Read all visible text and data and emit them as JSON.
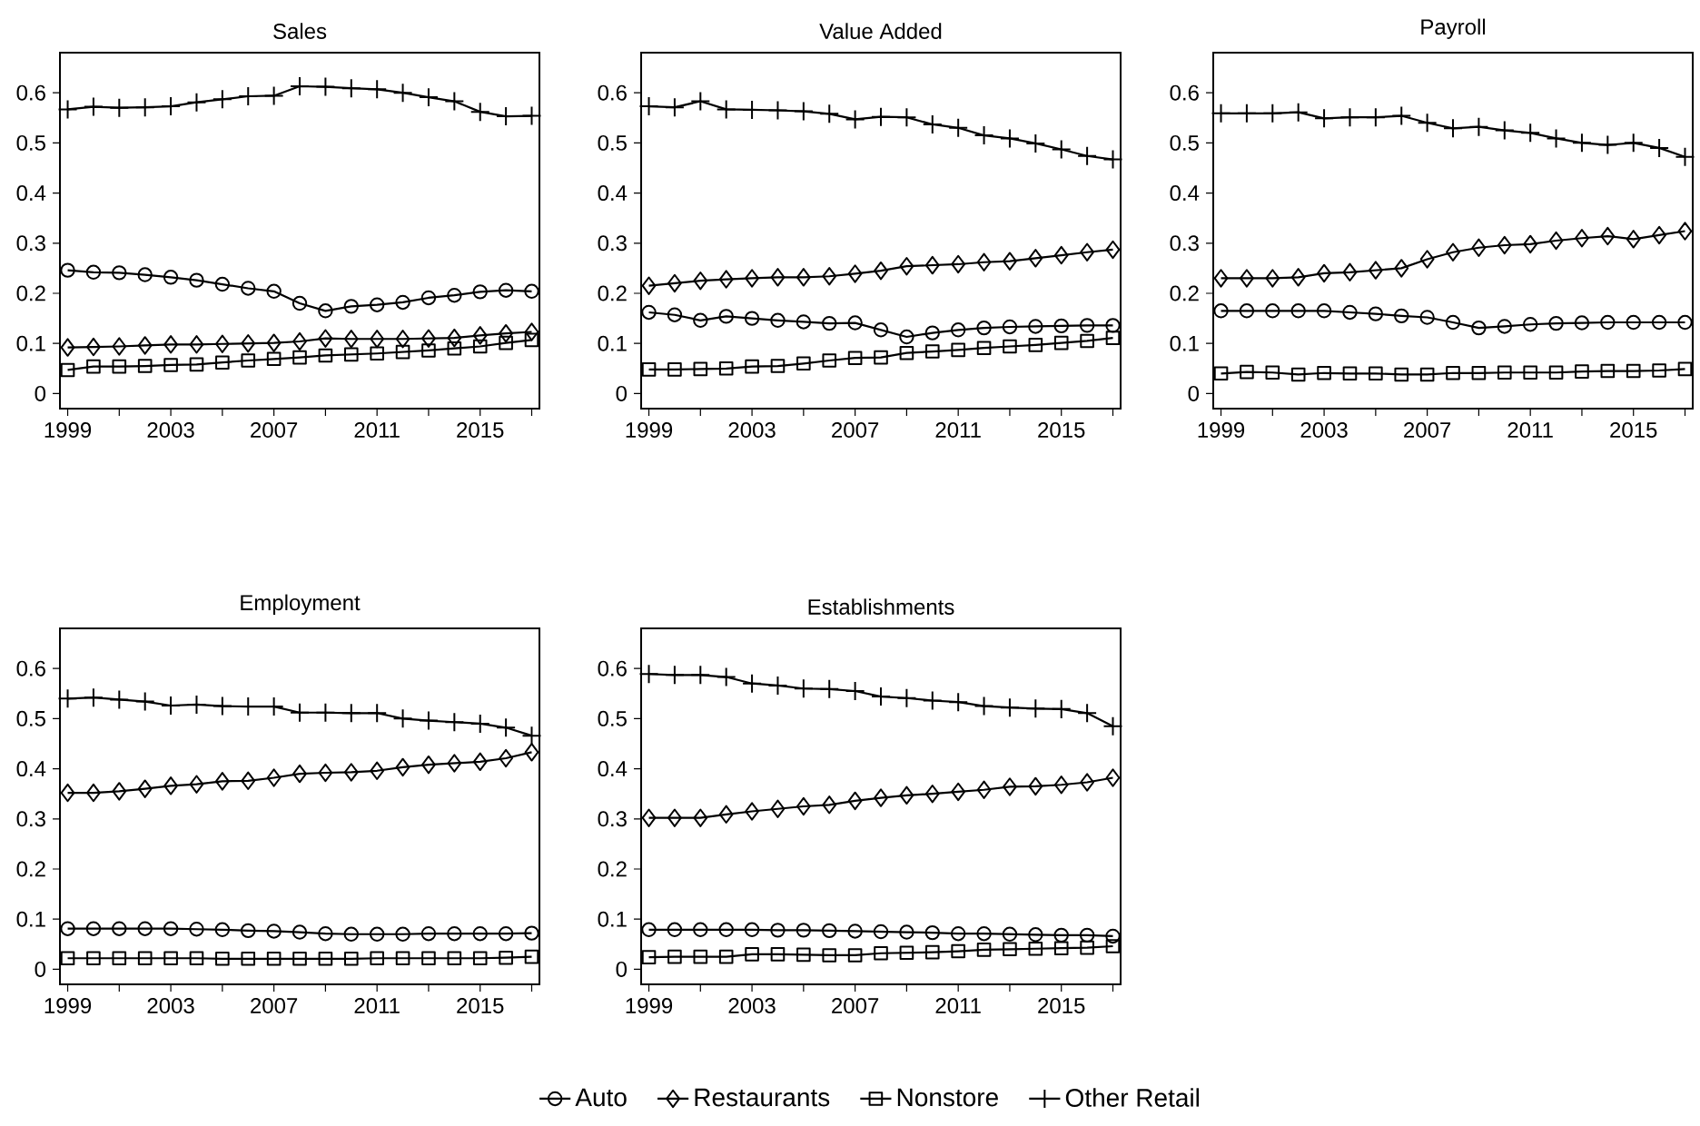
{
  "chart_data": [
    {
      "type": "line",
      "title": "Sales",
      "x": [
        1999,
        2000,
        2001,
        2002,
        2003,
        2004,
        2005,
        2006,
        2007,
        2008,
        2009,
        2010,
        2011,
        2012,
        2013,
        2014,
        2015,
        2016,
        2017
      ],
      "xlim": [
        1998.7,
        2017.3
      ],
      "ylim": [
        -0.03,
        0.68
      ],
      "xticks": [
        1999,
        {
          "value": 2001,
          "label": null
        },
        2003,
        {
          "value": 2005,
          "label": null
        },
        2007,
        {
          "value": 2009,
          "label": null
        },
        2011,
        {
          "value": 2013,
          "label": null
        },
        2015,
        {
          "value": 2017,
          "label": null
        }
      ],
      "yticks": [
        0,
        0.1,
        0.2,
        0.3,
        0.4,
        0.5,
        0.6
      ],
      "series": [
        {
          "color": "#000000",
          "marker": "circle",
          "values": [
            0.246,
            0.242,
            0.241,
            0.237,
            0.232,
            0.226,
            0.218,
            0.21,
            0.204,
            0.18,
            0.165,
            0.174,
            0.177,
            0.182,
            0.191,
            0.196,
            0.203,
            0.206,
            0.204
          ]
        },
        {
          "color": "#000000",
          "marker": "diamond",
          "values": [
            0.092,
            0.093,
            0.094,
            0.096,
            0.098,
            0.098,
            0.099,
            0.1,
            0.101,
            0.104,
            0.11,
            0.109,
            0.109,
            0.109,
            0.11,
            0.111,
            0.116,
            0.12,
            0.123
          ]
        },
        {
          "color": "#000000",
          "marker": "square",
          "values": [
            0.047,
            0.054,
            0.054,
            0.055,
            0.057,
            0.058,
            0.062,
            0.066,
            0.069,
            0.072,
            0.076,
            0.078,
            0.08,
            0.083,
            0.086,
            0.09,
            0.094,
            0.101,
            0.107
          ]
        },
        {
          "color": "#000000",
          "marker": "cross",
          "values": [
            0.567,
            0.572,
            0.57,
            0.571,
            0.573,
            0.581,
            0.587,
            0.593,
            0.594,
            0.613,
            0.612,
            0.609,
            0.607,
            0.6,
            0.591,
            0.583,
            0.562,
            0.553,
            0.554
          ]
        }
      ]
    },
    {
      "type": "line",
      "title": "Value Added",
      "x": [
        1999,
        2000,
        2001,
        2002,
        2003,
        2004,
        2005,
        2006,
        2007,
        2008,
        2009,
        2010,
        2011,
        2012,
        2013,
        2014,
        2015,
        2016,
        2017
      ],
      "xlim": [
        1998.7,
        2017.3
      ],
      "ylim": [
        -0.03,
        0.68
      ],
      "xticks": [
        1999,
        {
          "value": 2001,
          "label": null
        },
        2003,
        {
          "value": 2005,
          "label": null
        },
        2007,
        {
          "value": 2009,
          "label": null
        },
        2011,
        {
          "value": 2013,
          "label": null
        },
        2015,
        {
          "value": 2017,
          "label": null
        }
      ],
      "yticks": [
        0,
        0.1,
        0.2,
        0.3,
        0.4,
        0.5,
        0.6
      ],
      "series": [
        {
          "color": "#000000",
          "marker": "circle",
          "values": [
            0.162,
            0.157,
            0.146,
            0.154,
            0.15,
            0.146,
            0.143,
            0.14,
            0.141,
            0.127,
            0.113,
            0.121,
            0.127,
            0.131,
            0.133,
            0.134,
            0.135,
            0.136,
            0.136
          ]
        },
        {
          "color": "#000000",
          "marker": "diamond",
          "values": [
            0.215,
            0.22,
            0.225,
            0.228,
            0.23,
            0.232,
            0.232,
            0.234,
            0.239,
            0.245,
            0.254,
            0.256,
            0.258,
            0.262,
            0.264,
            0.27,
            0.276,
            0.282,
            0.287
          ]
        },
        {
          "color": "#000000",
          "marker": "square",
          "values": [
            0.048,
            0.048,
            0.049,
            0.05,
            0.054,
            0.055,
            0.06,
            0.066,
            0.071,
            0.072,
            0.081,
            0.084,
            0.087,
            0.091,
            0.094,
            0.097,
            0.101,
            0.105,
            0.111
          ]
        },
        {
          "color": "#000000",
          "marker": "cross",
          "values": [
            0.573,
            0.571,
            0.583,
            0.567,
            0.566,
            0.565,
            0.563,
            0.558,
            0.547,
            0.552,
            0.551,
            0.537,
            0.53,
            0.515,
            0.509,
            0.499,
            0.487,
            0.474,
            0.467
          ]
        }
      ]
    },
    {
      "type": "line",
      "title": "Payroll",
      "x": [
        1999,
        2000,
        2001,
        2002,
        2003,
        2004,
        2005,
        2006,
        2007,
        2008,
        2009,
        2010,
        2011,
        2012,
        2013,
        2014,
        2015,
        2016,
        2017
      ],
      "xlim": [
        1998.7,
        2017.3
      ],
      "ylim": [
        -0.03,
        0.68
      ],
      "xticks": [
        1999,
        {
          "value": 2001,
          "label": null
        },
        2003,
        {
          "value": 2005,
          "label": null
        },
        2007,
        {
          "value": 2009,
          "label": null
        },
        2011,
        {
          "value": 2013,
          "label": null
        },
        2015,
        {
          "value": 2017,
          "label": null
        }
      ],
      "yticks": [
        0,
        0.1,
        0.2,
        0.3,
        0.4,
        0.5,
        0.6
      ],
      "series": [
        {
          "color": "#000000",
          "marker": "circle",
          "values": [
            0.165,
            0.165,
            0.165,
            0.165,
            0.165,
            0.162,
            0.159,
            0.155,
            0.152,
            0.142,
            0.131,
            0.134,
            0.138,
            0.14,
            0.141,
            0.142,
            0.142,
            0.142,
            0.142
          ]
        },
        {
          "color": "#000000",
          "marker": "diamond",
          "values": [
            0.23,
            0.23,
            0.23,
            0.232,
            0.24,
            0.242,
            0.246,
            0.25,
            0.268,
            0.282,
            0.291,
            0.296,
            0.298,
            0.305,
            0.31,
            0.314,
            0.308,
            0.316,
            0.324
          ]
        },
        {
          "color": "#000000",
          "marker": "square",
          "values": [
            0.04,
            0.043,
            0.042,
            0.038,
            0.041,
            0.04,
            0.04,
            0.038,
            0.038,
            0.041,
            0.041,
            0.042,
            0.042,
            0.042,
            0.044,
            0.045,
            0.045,
            0.046,
            0.049
          ]
        },
        {
          "color": "#000000",
          "marker": "cross",
          "values": [
            0.559,
            0.559,
            0.559,
            0.561,
            0.549,
            0.551,
            0.551,
            0.554,
            0.54,
            0.529,
            0.532,
            0.525,
            0.52,
            0.509,
            0.5,
            0.496,
            0.5,
            0.49,
            0.472
          ]
        }
      ]
    },
    {
      "type": "line",
      "title": "Employment",
      "x": [
        1999,
        2000,
        2001,
        2002,
        2003,
        2004,
        2005,
        2006,
        2007,
        2008,
        2009,
        2010,
        2011,
        2012,
        2013,
        2014,
        2015,
        2016,
        2017
      ],
      "xlim": [
        1998.7,
        2017.3
      ],
      "ylim": [
        -0.03,
        0.68
      ],
      "xticks": [
        1999,
        {
          "value": 2001,
          "label": null
        },
        2003,
        {
          "value": 2005,
          "label": null
        },
        2007,
        {
          "value": 2009,
          "label": null
        },
        2011,
        {
          "value": 2013,
          "label": null
        },
        2015,
        {
          "value": 2017,
          "label": null
        }
      ],
      "yticks": [
        0,
        0.1,
        0.2,
        0.3,
        0.4,
        0.5,
        0.6
      ],
      "series": [
        {
          "color": "#000000",
          "marker": "circle",
          "values": [
            0.081,
            0.081,
            0.081,
            0.081,
            0.081,
            0.08,
            0.079,
            0.077,
            0.076,
            0.074,
            0.071,
            0.07,
            0.07,
            0.07,
            0.071,
            0.071,
            0.071,
            0.071,
            0.072
          ]
        },
        {
          "color": "#000000",
          "marker": "diamond",
          "values": [
            0.352,
            0.352,
            0.355,
            0.36,
            0.366,
            0.369,
            0.375,
            0.376,
            0.382,
            0.39,
            0.392,
            0.393,
            0.396,
            0.403,
            0.408,
            0.411,
            0.414,
            0.421,
            0.433
          ]
        },
        {
          "color": "#000000",
          "marker": "square",
          "values": [
            0.022,
            0.022,
            0.022,
            0.022,
            0.022,
            0.022,
            0.021,
            0.021,
            0.021,
            0.021,
            0.021,
            0.021,
            0.022,
            0.022,
            0.022,
            0.022,
            0.022,
            0.023,
            0.025
          ]
        },
        {
          "color": "#000000",
          "marker": "cross",
          "values": [
            0.54,
            0.542,
            0.538,
            0.534,
            0.526,
            0.528,
            0.525,
            0.524,
            0.524,
            0.512,
            0.512,
            0.511,
            0.511,
            0.5,
            0.496,
            0.493,
            0.49,
            0.482,
            0.466
          ]
        }
      ]
    },
    {
      "type": "line",
      "title": "Establishments",
      "x": [
        1999,
        2000,
        2001,
        2002,
        2003,
        2004,
        2005,
        2006,
        2007,
        2008,
        2009,
        2010,
        2011,
        2012,
        2013,
        2014,
        2015,
        2016,
        2017
      ],
      "xlim": [
        1998.7,
        2017.3
      ],
      "ylim": [
        -0.03,
        0.68
      ],
      "legend": "bottom",
      "xticks": [
        1999,
        {
          "value": 2001,
          "label": null
        },
        2003,
        {
          "value": 2005,
          "label": null
        },
        2007,
        {
          "value": 2009,
          "label": null
        },
        2011,
        {
          "value": 2013,
          "label": null
        },
        2015,
        {
          "value": 2017,
          "label": null
        }
      ],
      "yticks": [
        0,
        0.1,
        0.2,
        0.3,
        0.4,
        0.5,
        0.6
      ],
      "series": [
        {
          "name": "Auto",
          "color": "#000000",
          "marker": "circle",
          "values": [
            0.079,
            0.079,
            0.079,
            0.079,
            0.079,
            0.078,
            0.078,
            0.077,
            0.076,
            0.075,
            0.074,
            0.073,
            0.071,
            0.071,
            0.07,
            0.069,
            0.068,
            0.068,
            0.066
          ]
        },
        {
          "name": "Restaurants",
          "color": "#000000",
          "marker": "diamond",
          "values": [
            0.302,
            0.302,
            0.302,
            0.309,
            0.315,
            0.32,
            0.325,
            0.328,
            0.336,
            0.342,
            0.347,
            0.35,
            0.354,
            0.358,
            0.364,
            0.365,
            0.368,
            0.373,
            0.382
          ]
        },
        {
          "name": "Nonstore",
          "color": "#000000",
          "marker": "square",
          "values": [
            0.024,
            0.025,
            0.025,
            0.025,
            0.03,
            0.03,
            0.029,
            0.028,
            0.028,
            0.032,
            0.033,
            0.034,
            0.036,
            0.039,
            0.04,
            0.041,
            0.042,
            0.043,
            0.046
          ]
        },
        {
          "name": "Other Retail",
          "color": "#000000",
          "marker": "cross",
          "values": [
            0.589,
            0.587,
            0.587,
            0.583,
            0.57,
            0.566,
            0.56,
            0.559,
            0.555,
            0.544,
            0.541,
            0.536,
            0.533,
            0.525,
            0.522,
            0.52,
            0.519,
            0.511,
            0.485
          ]
        }
      ]
    }
  ]
}
